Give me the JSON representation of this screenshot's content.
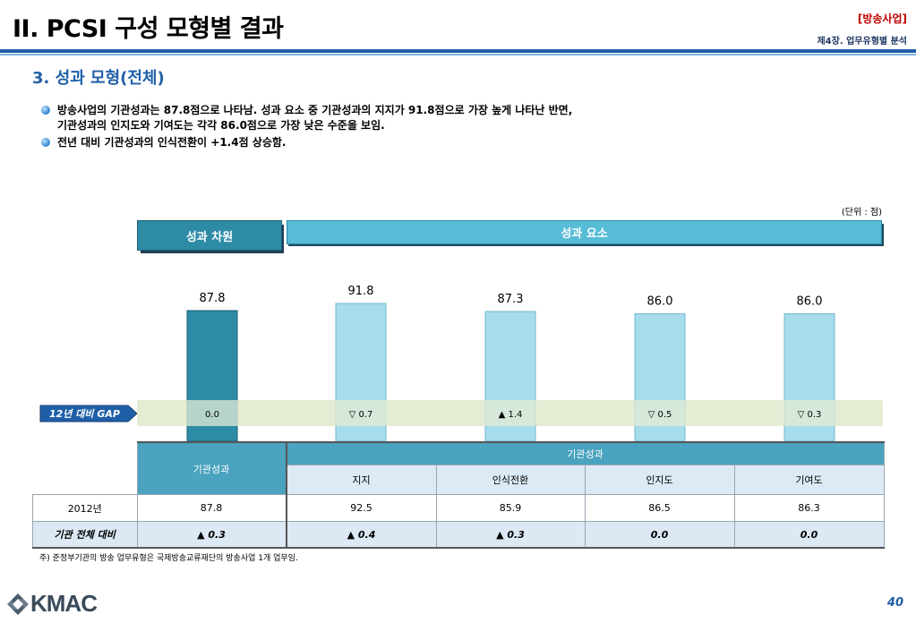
{
  "header": {
    "title": "II. PCSI 구성 모형별 결과",
    "tag": "[방송사업]",
    "chapter": "제4장. 업무유형별 분석"
  },
  "section_title": "3. 성과 모형(전체)",
  "bullets": [
    {
      "line1": "방송사업의 기관성과는 87.8점으로 나타남. 성과 요소 중 기관성과의 지지가 91.8점으로 가장 높게 나타난 반면,",
      "line2": "기관성과의 인지도와 기여도는 각각 86.0점으로 가장 낮은 수준을 보임."
    },
    {
      "line1": "전년 대비 기관성과의 인식전환이 +1.4점 상승함.",
      "line2": ""
    }
  ],
  "unit_note": "(단위 : 점)",
  "banners": {
    "dimension": "성과 차원",
    "elements": "성과 요소"
  },
  "gap_label": "12년 대비 GAP",
  "chart_data": {
    "type": "bar",
    "categories": [
      "기관성과",
      "지지",
      "인식전환",
      "인지도",
      "기여도"
    ],
    "values": [
      87.8,
      91.8,
      87.3,
      86.0,
      86.0
    ],
    "value_labels": [
      "87.8",
      "91.8",
      "87.3",
      "86.0",
      "86.0"
    ],
    "gap_labels": [
      "0.0",
      "▽ 0.7",
      "▲ 1.4",
      "▽ 0.5",
      "▽ 0.3"
    ],
    "colors": {
      "dimension": "#2e8ba6",
      "element": "#a6dcec",
      "element_border": "#6fb8d0"
    },
    "ylim": [
      0,
      100
    ],
    "title": "",
    "xlabel": "",
    "ylabel": ""
  },
  "table": {
    "inst_header": "기관성과",
    "group_header": "기관성과",
    "sub_headers": [
      "지지",
      "인식전환",
      "인지도",
      "기여도"
    ],
    "rows": [
      {
        "label": "2012년",
        "values": [
          "87.8",
          "92.5",
          "85.9",
          "86.5",
          "86.3"
        ]
      },
      {
        "label": "기관 전체 대비",
        "values": [
          "▲ 0.3",
          "▲ 0.4",
          "▲ 0.3",
          "0.0",
          "0.0"
        ]
      }
    ]
  },
  "footnote": "주) 준정부기관의 방송 업무유형은 국제방송교류재단의 방송사업 1개 업무임.",
  "logo_text": "KMAC",
  "page_number": "40"
}
